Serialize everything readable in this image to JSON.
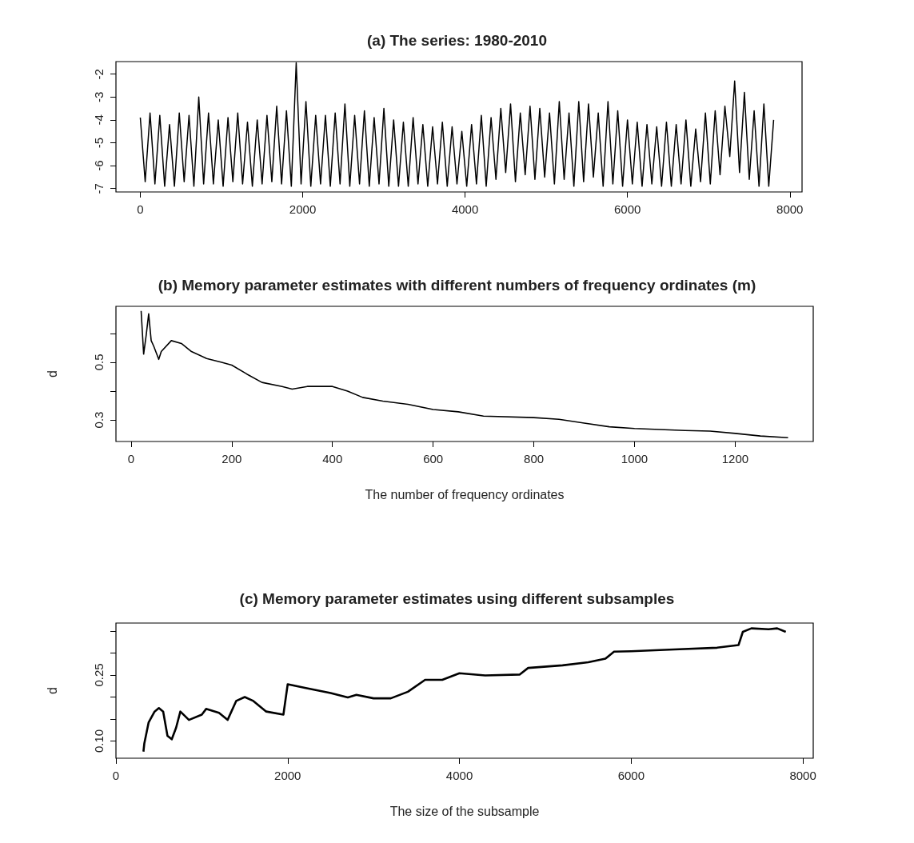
{
  "chart_data": [
    {
      "type": "line",
      "title": "(a) The series: 1980-2010",
      "marker": "none",
      "line_style": "solid",
      "xlim": [
        -300,
        8150
      ],
      "xticks": [
        0,
        2000,
        4000,
        6000,
        8000
      ],
      "ylim": [
        -7.15,
        -1.45
      ],
      "yticks": [
        -7,
        -6,
        -5,
        -4,
        -3,
        -2
      ],
      "series": [
        {
          "color": "#000000",
          "x": [
            0,
            60,
            120,
            180,
            240,
            300,
            360,
            420,
            480,
            540,
            600,
            660,
            720,
            780,
            840,
            900,
            960,
            1020,
            1080,
            1140,
            1200,
            1260,
            1320,
            1380,
            1440,
            1500,
            1560,
            1620,
            1680,
            1740,
            1800,
            1860,
            1920,
            1980,
            2040,
            2100,
            2160,
            2220,
            2280,
            2340,
            2400,
            2460,
            2520,
            2580,
            2640,
            2700,
            2760,
            2820,
            2880,
            2940,
            3000,
            3060,
            3120,
            3180,
            3240,
            3300,
            3360,
            3420,
            3480,
            3540,
            3600,
            3660,
            3720,
            3780,
            3840,
            3900,
            3960,
            4020,
            4080,
            4140,
            4200,
            4260,
            4320,
            4380,
            4440,
            4500,
            4560,
            4620,
            4680,
            4740,
            4800,
            4860,
            4920,
            4980,
            5040,
            5100,
            5160,
            5220,
            5280,
            5340,
            5400,
            5460,
            5520,
            5580,
            5640,
            5700,
            5760,
            5820,
            5880,
            5940,
            6000,
            6060,
            6120,
            6180,
            6240,
            6300,
            6360,
            6420,
            6480,
            6540,
            6600,
            6660,
            6720,
            6780,
            6840,
            6900,
            6960,
            7020,
            7080,
            7140,
            7200,
            7260,
            7320,
            7380,
            7440,
            7500,
            7560,
            7620,
            7680,
            7740,
            7800
          ],
          "values": [
            -3.9,
            -6.7,
            -3.7,
            -6.8,
            -3.8,
            -6.9,
            -4.2,
            -6.9,
            -3.7,
            -6.7,
            -3.8,
            -6.9,
            -3.0,
            -6.8,
            -3.7,
            -6.8,
            -4.0,
            -6.9,
            -3.9,
            -6.7,
            -3.7,
            -6.8,
            -4.1,
            -6.9,
            -4.0,
            -6.8,
            -3.8,
            -6.7,
            -3.4,
            -6.8,
            -3.6,
            -6.9,
            -1.5,
            -6.8,
            -3.2,
            -6.9,
            -3.8,
            -6.8,
            -3.8,
            -6.9,
            -3.7,
            -6.8,
            -3.3,
            -6.9,
            -3.8,
            -6.8,
            -3.6,
            -6.9,
            -3.9,
            -6.8,
            -3.5,
            -6.9,
            -4.0,
            -6.9,
            -4.1,
            -6.9,
            -3.9,
            -6.8,
            -4.2,
            -6.9,
            -4.3,
            -6.8,
            -4.1,
            -6.9,
            -4.3,
            -6.8,
            -4.5,
            -6.9,
            -4.2,
            -6.8,
            -3.8,
            -6.9,
            -3.9,
            -6.6,
            -3.5,
            -6.3,
            -3.3,
            -6.7,
            -3.7,
            -6.4,
            -3.4,
            -6.6,
            -3.5,
            -6.5,
            -3.7,
            -6.8,
            -3.2,
            -6.6,
            -3.7,
            -6.9,
            -3.2,
            -6.7,
            -3.3,
            -6.5,
            -3.7,
            -6.9,
            -3.2,
            -6.8,
            -3.6,
            -6.9,
            -4.0,
            -6.8,
            -4.1,
            -6.9,
            -4.2,
            -6.8,
            -4.3,
            -6.9,
            -4.1,
            -6.9,
            -4.2,
            -6.8,
            -4.0,
            -6.9,
            -4.4,
            -6.7,
            -3.7,
            -6.8,
            -3.6,
            -6.4,
            -3.4,
            -5.6,
            -2.3,
            -6.3,
            -2.8,
            -6.6,
            -3.6,
            -6.9,
            -3.3,
            -6.9,
            -4.0
          ]
        }
      ]
    },
    {
      "type": "line",
      "title": "(b) Memory parameter estimates with different numbers of frequency ordinates (m)",
      "xlabel": "The number of frequency ordinates",
      "ylabel": "d",
      "marker": "none",
      "line_style": "solid",
      "xlim": [
        -30,
        1355
      ],
      "xticks": [
        0,
        200,
        400,
        600,
        800,
        1000,
        1200
      ],
      "ylim": [
        0.225,
        0.694
      ],
      "yticks": [
        0.3,
        {
          "value": 0.4,
          "label": null
        },
        0.5,
        {
          "value": 0.6,
          "label": null
        }
      ],
      "series": [
        {
          "color": "#000000",
          "x": [
            20,
            25,
            30,
            35,
            40,
            45,
            55,
            60,
            80,
            100,
            120,
            150,
            180,
            200,
            230,
            260,
            300,
            320,
            350,
            400,
            430,
            460,
            500,
            550,
            600,
            650,
            700,
            800,
            850,
            900,
            950,
            1000,
            1100,
            1150,
            1200,
            1250,
            1305
          ],
          "values": [
            0.678,
            0.528,
            0.593,
            0.668,
            0.575,
            0.556,
            0.51,
            0.537,
            0.575,
            0.565,
            0.537,
            0.513,
            0.5,
            0.49,
            0.459,
            0.43,
            0.416,
            0.407,
            0.416,
            0.416,
            0.4,
            0.378,
            0.365,
            0.354,
            0.336,
            0.328,
            0.313,
            0.308,
            0.302,
            0.289,
            0.276,
            0.27,
            0.263,
            0.261,
            0.253,
            0.244,
            0.238
          ]
        }
      ]
    },
    {
      "type": "line",
      "title": "(c) Memory parameter estimates using different subsamples",
      "xlabel": "The size of the subsample",
      "ylabel": "d",
      "marker": "none",
      "line_style": "solid",
      "xlim": [
        0,
        8120
      ],
      "xticks": [
        0,
        2000,
        4000,
        6000,
        8000
      ],
      "ylim": [
        0.061,
        0.368
      ],
      "yticks": [
        {
          "value": 0.1,
          "label": "0.10"
        },
        {
          "value": 0.15,
          "label": null
        },
        {
          "value": 0.2,
          "label": null
        },
        0.25,
        {
          "value": 0.3,
          "label": null
        },
        {
          "value": 0.35,
          "label": null
        }
      ],
      "series": [
        {
          "color": "#000000",
          "x": [
            320,
            330,
            380,
            450,
            500,
            550,
            600,
            650,
            700,
            750,
            850,
            1000,
            1050,
            1200,
            1300,
            1400,
            1500,
            1600,
            1750,
            1950,
            2000,
            2200,
            2500,
            2700,
            2800,
            3000,
            3200,
            3400,
            3600,
            3800,
            4000,
            4300,
            4700,
            4800,
            5200,
            5500,
            5700,
            5800,
            6000,
            6500,
            7000,
            7250,
            7300,
            7400,
            7600,
            7700,
            7800
          ],
          "values": [
            0.076,
            0.094,
            0.142,
            0.167,
            0.175,
            0.167,
            0.112,
            0.104,
            0.13,
            0.167,
            0.148,
            0.16,
            0.173,
            0.164,
            0.148,
            0.191,
            0.2,
            0.191,
            0.167,
            0.16,
            0.229,
            0.221,
            0.209,
            0.199,
            0.205,
            0.197,
            0.197,
            0.212,
            0.239,
            0.239,
            0.254,
            0.249,
            0.251,
            0.266,
            0.272,
            0.279,
            0.287,
            0.303,
            0.304,
            0.308,
            0.312,
            0.318,
            0.348,
            0.356,
            0.354,
            0.356,
            0.348
          ]
        }
      ]
    }
  ]
}
